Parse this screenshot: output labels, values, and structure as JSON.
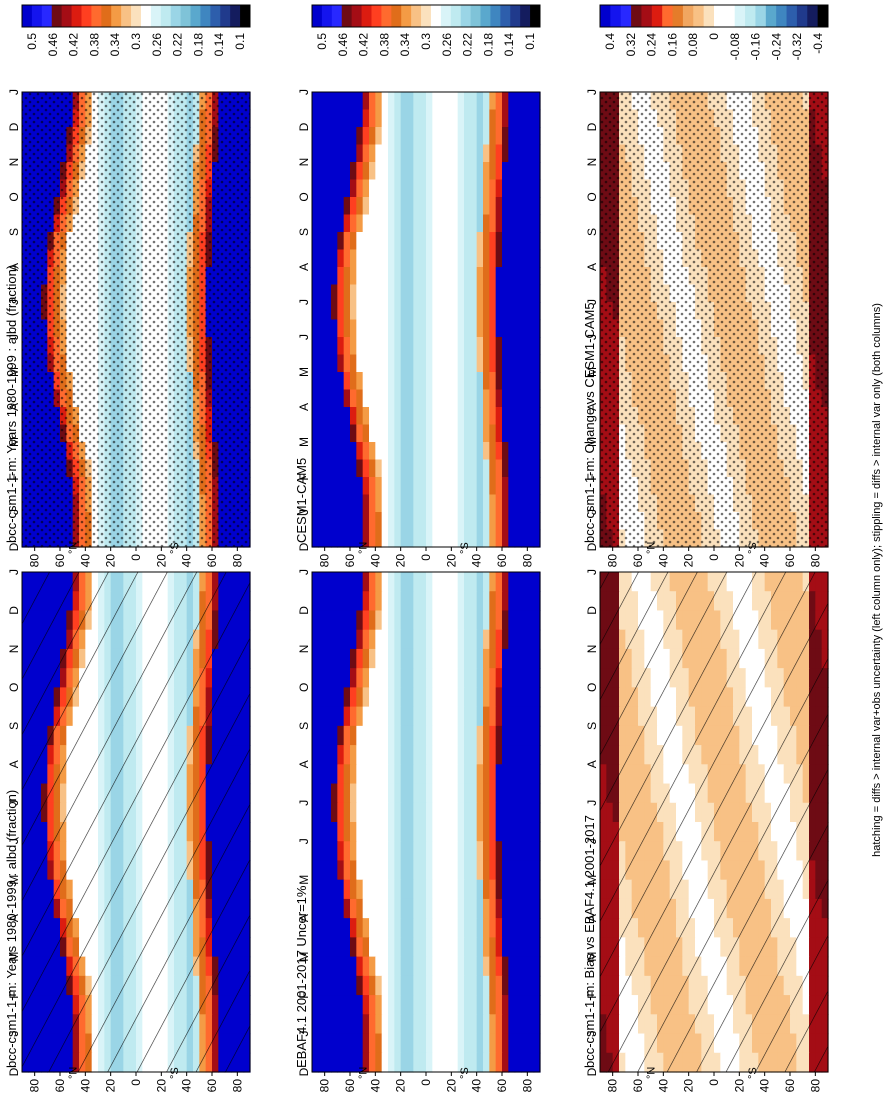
{
  "footnote": "hatching = diffs > internal var+obs uncertainty (left column only); stippling = diffs > internal var only (both columns)",
  "chart_data": [
    {
      "id": "p1",
      "type": "heatmap",
      "title": "bcc-csm1-1-m: Years 1980-1999 : albd (fraction)",
      "x_ticks": [
        "D",
        "J",
        "F",
        "M",
        "A",
        "M",
        "J",
        "J",
        "A",
        "S",
        "O",
        "N",
        "D",
        "J"
      ],
      "y_ticks": [
        "80",
        "60",
        "40",
        "20",
        "0",
        "20",
        "40",
        "60",
        "80"
      ],
      "y_hemi_labels": [
        "°N",
        "°S"
      ],
      "ylim": [
        -90,
        90
      ],
      "overlay": "hatching",
      "colorbar": {
        "ticks": [
          "0.5",
          "0.46",
          "0.42",
          "0.38",
          "0.34",
          "0.3",
          "0.26",
          "0.22",
          "0.18",
          "0.14",
          "0.1"
        ]
      }
    },
    {
      "id": "p2",
      "type": "heatmap",
      "title": "bcc-csm1-1-m: Years 1980-1999 : albd (fraction)",
      "x_ticks": [
        "D",
        "J",
        "F",
        "M",
        "A",
        "M",
        "J",
        "J",
        "A",
        "S",
        "O",
        "N",
        "D",
        "J"
      ],
      "y_ticks": [
        "80",
        "60",
        "40",
        "20",
        "0",
        "20",
        "40",
        "60",
        "80"
      ],
      "y_hemi_labels": [
        "°N",
        "°S"
      ],
      "ylim": [
        -90,
        90
      ],
      "overlay": "stippling",
      "colorbar": {
        "ticks": [
          "0.5",
          "0.46",
          "0.42",
          "0.38",
          "0.34",
          "0.3",
          "0.26",
          "0.22",
          "0.18",
          "0.14",
          "0.1"
        ]
      }
    },
    {
      "id": "p3",
      "type": "heatmap",
      "title": "EBAF4.1 2001-2017 Uncer=1%",
      "x_ticks": [
        "D",
        "J",
        "F",
        "M",
        "A",
        "M",
        "J",
        "J",
        "A",
        "S",
        "O",
        "N",
        "D",
        "J"
      ],
      "y_ticks": [
        "80",
        "60",
        "40",
        "20",
        "0",
        "20",
        "40",
        "60",
        "80"
      ],
      "y_hemi_labels": [
        "°N",
        "°S"
      ],
      "ylim": [
        -90,
        90
      ],
      "overlay": "none",
      "colorbar": {
        "ticks": [
          "0.5",
          "0.46",
          "0.42",
          "0.38",
          "0.34",
          "0.3",
          "0.26",
          "0.22",
          "0.18",
          "0.14",
          "0.1"
        ]
      }
    },
    {
      "id": "p4",
      "type": "heatmap",
      "title": "CESM1-CAM5",
      "x_ticks": [
        "D",
        "J",
        "F",
        "M",
        "A",
        "M",
        "J",
        "J",
        "A",
        "S",
        "O",
        "N",
        "D",
        "J"
      ],
      "y_ticks": [
        "80",
        "60",
        "40",
        "20",
        "0",
        "20",
        "40",
        "60",
        "80"
      ],
      "y_hemi_labels": [
        "°N",
        "°S"
      ],
      "ylim": [
        -90,
        90
      ],
      "overlay": "none",
      "colorbar": {
        "ticks": [
          "0.5",
          "0.46",
          "0.42",
          "0.38",
          "0.34",
          "0.3",
          "0.26",
          "0.22",
          "0.18",
          "0.14",
          "0.1"
        ]
      }
    },
    {
      "id": "p5",
      "type": "heatmap",
      "title": "bcc-csm1-1-m: Bias vs EBAF4.1 2001-2017",
      "x_ticks": [
        "D",
        "J",
        "F",
        "M",
        "A",
        "M",
        "J",
        "J",
        "A",
        "S",
        "O",
        "N",
        "D",
        "J"
      ],
      "y_ticks": [
        "80",
        "60",
        "40",
        "20",
        "0",
        "20",
        "40",
        "60",
        "80"
      ],
      "y_hemi_labels": [
        "°N",
        "°S"
      ],
      "ylim": [
        -90,
        90
      ],
      "overlay": "hatching",
      "colorbar": {
        "ticks": [
          "0.4",
          "0.32",
          "0.24",
          "0.16",
          "0.08",
          "0",
          "-0.08",
          "-0.16",
          "-0.24",
          "-0.32",
          "-0.4"
        ]
      }
    },
    {
      "id": "p6",
      "type": "heatmap",
      "title": "bcc-csm1-1-m: Change vs CESM1-CAM5",
      "x_ticks": [
        "D",
        "J",
        "F",
        "M",
        "A",
        "M",
        "J",
        "J",
        "A",
        "S",
        "O",
        "N",
        "D",
        "J"
      ],
      "y_ticks": [
        "80",
        "60",
        "40",
        "20",
        "0",
        "20",
        "40",
        "60",
        "80"
      ],
      "y_hemi_labels": [
        "°N",
        "°S"
      ],
      "ylim": [
        -90,
        90
      ],
      "overlay": "stippling",
      "colorbar": {
        "ticks": [
          "0.4",
          "0.32",
          "0.24",
          "0.16",
          "0.08",
          "0",
          "-0.08",
          "-0.16",
          "-0.24",
          "-0.32",
          "-0.4"
        ]
      }
    }
  ],
  "colors": {
    "abs_scale": [
      "#0000cd",
      "#1414ee",
      "#2828ff",
      "#6e0b14",
      "#a40d15",
      "#dc1c10",
      "#ff3f20",
      "#ff6a2e",
      "#e06d1a",
      "#f49b45",
      "#f8c185",
      "#fbe1bd",
      "#ffffff",
      "#d9f4f8",
      "#bfeaf0",
      "#9ad5e6",
      "#7fc3d8",
      "#5aa8cd",
      "#3f86c0",
      "#2d5eac",
      "#203a8c",
      "#141c5e",
      "#000000"
    ],
    "diff_scale": [
      "#0000cd",
      "#1414ee",
      "#2828ff",
      "#6e0b14",
      "#a40d15",
      "#dc1c10",
      "#ff6a2e",
      "#e57c2a",
      "#f1a660",
      "#f8c185",
      "#fbe1bd",
      "#ffffff",
      "#ffffff",
      "#d9f4f8",
      "#bfeaf0",
      "#9ad5e6",
      "#5aa8cd",
      "#3f86c0",
      "#2d5eac",
      "#203a8c",
      "#141c5e",
      "#000000"
    ]
  }
}
